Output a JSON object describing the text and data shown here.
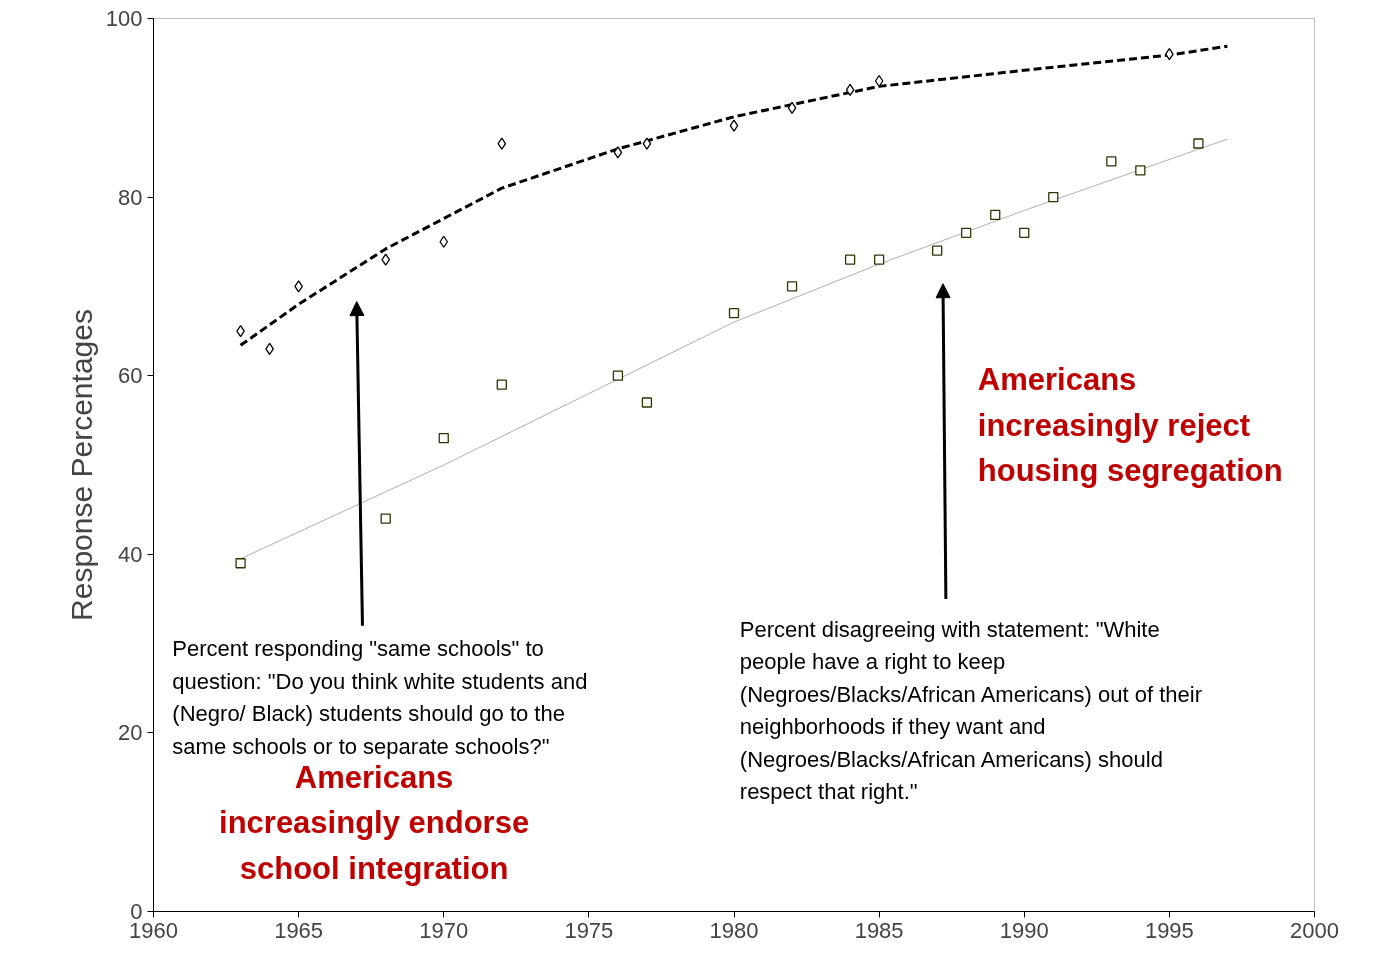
{
  "chart_data": {
    "type": "scatter",
    "ylabel": "Response Percentages",
    "xlim": [
      1960,
      2000
    ],
    "xticks": [
      1960,
      1965,
      1970,
      1975,
      1980,
      1985,
      1990,
      1995,
      2000
    ],
    "ylim": [
      0,
      100
    ],
    "yticks": [
      0,
      20,
      40,
      60,
      80,
      100
    ],
    "grid": false,
    "series": [
      {
        "marker": "diamond",
        "color": "#000000",
        "x": [
          1963,
          1964,
          1965,
          1968,
          1970,
          1972,
          1976,
          1977,
          1980,
          1982,
          1984,
          1985,
          1995
        ],
        "values": [
          65,
          63,
          70,
          73,
          75,
          86,
          85,
          86,
          88,
          90,
          92,
          93,
          96
        ]
      },
      {
        "marker": "square",
        "color": "#333300",
        "x": [
          1963,
          1968,
          1970,
          1972,
          1976,
          1977,
          1980,
          1982,
          1984,
          1985,
          1987,
          1988,
          1989,
          1990,
          1991,
          1993,
          1994,
          1996
        ],
        "values": [
          39,
          44,
          53,
          59,
          60,
          57,
          67,
          70,
          73,
          73,
          74,
          76,
          78,
          76,
          80,
          84,
          83,
          86
        ]
      },
      {
        "type": "line",
        "line_style": "dashed",
        "color": "#000000",
        "x": [
          1963,
          1965,
          1968,
          1972,
          1976,
          1980,
          1985,
          1990,
          1995,
          1997
        ],
        "values": [
          63.4,
          68,
          74.2,
          81,
          85.4,
          89,
          92.4,
          94.2,
          95.9,
          96.9
        ]
      },
      {
        "type": "line",
        "line_style": "solid",
        "color": "#b0b0b0",
        "x": [
          1963,
          1970,
          1975,
          1980,
          1985,
          1990,
          1997
        ],
        "values": [
          39.5,
          50,
          58,
          66,
          72.5,
          78.5,
          86.5
        ]
      }
    ],
    "annotations": [
      "Percent responding \"same schools\" to\nquestion: \"Do you think white students and\n(Negro/ Black) students should go to the\nsame schools or to separate schools?\"",
      "Americans\nincreasingly endorse\nschool integration",
      "Percent disagreeing with statement: \"White\npeople have a right to keep\n(Negroes/Blacks/African Americans) out of their\nneighborhoods if they want and\n(Negroes/Blacks/African Americans) should\nrespect that right.\"",
      "Americans\nincreasingly reject\nhousing segregation"
    ]
  }
}
